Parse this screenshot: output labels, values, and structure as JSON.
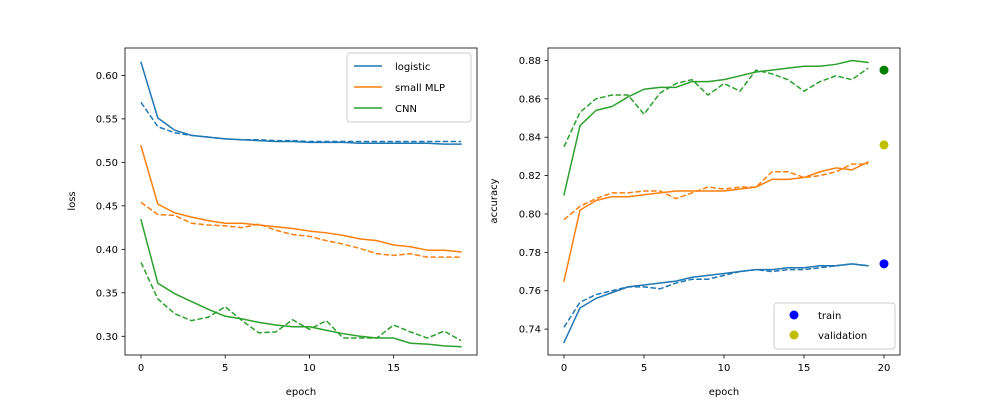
{
  "chart_data": [
    {
      "type": "line",
      "xlabel": "epoch",
      "ylabel": "loss",
      "xlim": [
        -0.95,
        19.95
      ],
      "ylim": [
        0.2785,
        0.6315
      ],
      "xticks": [
        0,
        5,
        10,
        15
      ],
      "yticks": [
        0.3,
        0.35,
        0.4,
        0.45,
        0.5,
        0.55,
        0.6
      ],
      "ytick_labels": [
        "0.30",
        "0.35",
        "0.40",
        "0.45",
        "0.50",
        "0.55",
        "0.60"
      ],
      "legend": {
        "placement": "top-right",
        "entries": [
          "logistic",
          "small MLP",
          "CNN"
        ]
      },
      "x": [
        0,
        1,
        2,
        3,
        4,
        5,
        6,
        7,
        8,
        9,
        10,
        11,
        12,
        13,
        14,
        15,
        16,
        17,
        18,
        19
      ],
      "series": [
        {
          "name": "logistic",
          "color": "#1f77b4",
          "linestyle": "solid",
          "values": [
            0.615,
            0.551,
            0.537,
            0.531,
            0.529,
            0.527,
            0.526,
            0.525,
            0.524,
            0.524,
            0.523,
            0.523,
            0.523,
            0.522,
            0.522,
            0.522,
            0.522,
            0.522,
            0.521,
            0.521
          ]
        },
        {
          "name": "logistic",
          "color": "#1f77b4",
          "linestyle": "dashed",
          "values": [
            0.569,
            0.541,
            0.534,
            0.531,
            0.529,
            0.527,
            0.526,
            0.526,
            0.525,
            0.525,
            0.524,
            0.524,
            0.524,
            0.524,
            0.524,
            0.524,
            0.524,
            0.524,
            0.524,
            0.524
          ]
        },
        {
          "name": "small MLP",
          "color": "#ff7f0e",
          "linestyle": "solid",
          "values": [
            0.519,
            0.452,
            0.442,
            0.437,
            0.433,
            0.43,
            0.43,
            0.428,
            0.426,
            0.424,
            0.421,
            0.419,
            0.416,
            0.412,
            0.41,
            0.405,
            0.403,
            0.399,
            0.399,
            0.397
          ]
        },
        {
          "name": "small MLP",
          "color": "#ff7f0e",
          "linestyle": "dashed",
          "values": [
            0.454,
            0.44,
            0.439,
            0.43,
            0.428,
            0.427,
            0.425,
            0.429,
            0.422,
            0.417,
            0.415,
            0.41,
            0.406,
            0.401,
            0.395,
            0.393,
            0.395,
            0.391,
            0.391,
            0.391
          ]
        },
        {
          "name": "CNN",
          "color": "#2ca02c",
          "linestyle": "solid",
          "values": [
            0.434,
            0.361,
            0.349,
            0.34,
            0.331,
            0.323,
            0.32,
            0.316,
            0.313,
            0.311,
            0.311,
            0.307,
            0.303,
            0.3,
            0.298,
            0.298,
            0.292,
            0.291,
            0.289,
            0.288
          ]
        },
        {
          "name": "CNN",
          "color": "#2ca02c",
          "linestyle": "dashed",
          "values": [
            0.385,
            0.343,
            0.326,
            0.318,
            0.322,
            0.334,
            0.318,
            0.304,
            0.305,
            0.319,
            0.308,
            0.318,
            0.298,
            0.298,
            0.298,
            0.313,
            0.305,
            0.298,
            0.306,
            0.295
          ]
        }
      ]
    },
    {
      "type": "line",
      "xlabel": "epoch",
      "ylabel": "accuracy",
      "xlim": [
        -1.0,
        21.0
      ],
      "ylim": [
        0.7265,
        0.8865
      ],
      "xticks": [
        0,
        5,
        10,
        15,
        20
      ],
      "yticks": [
        0.74,
        0.76,
        0.78,
        0.8,
        0.82,
        0.84,
        0.86,
        0.88
      ],
      "ytick_labels": [
        "0.74",
        "0.76",
        "0.78",
        "0.80",
        "0.82",
        "0.84",
        "0.86",
        "0.88"
      ],
      "legend": {
        "placement": "bottom-right",
        "entries": [
          "train",
          "validation"
        ]
      },
      "x": [
        0,
        1,
        2,
        3,
        4,
        5,
        6,
        7,
        8,
        9,
        10,
        11,
        12,
        13,
        14,
        15,
        16,
        17,
        18,
        19
      ],
      "series": [
        {
          "color": "#1f77b4",
          "linestyle": "solid",
          "values": [
            0.733,
            0.751,
            0.756,
            0.759,
            0.762,
            0.763,
            0.764,
            0.765,
            0.767,
            0.768,
            0.769,
            0.77,
            0.771,
            0.771,
            0.772,
            0.772,
            0.773,
            0.773,
            0.774,
            0.773
          ]
        },
        {
          "color": "#1f77b4",
          "linestyle": "dashed",
          "values": [
            0.741,
            0.754,
            0.758,
            0.76,
            0.762,
            0.762,
            0.761,
            0.764,
            0.766,
            0.766,
            0.768,
            0.77,
            0.771,
            0.77,
            0.771,
            0.771,
            0.772,
            0.773,
            0.774,
            0.773
          ]
        },
        {
          "color": "#ff7f0e",
          "linestyle": "solid",
          "values": [
            0.765,
            0.802,
            0.807,
            0.809,
            0.809,
            0.81,
            0.811,
            0.812,
            0.812,
            0.812,
            0.812,
            0.813,
            0.814,
            0.818,
            0.818,
            0.819,
            0.822,
            0.824,
            0.823,
            0.827
          ]
        },
        {
          "color": "#ff7f0e",
          "linestyle": "dashed",
          "values": [
            0.797,
            0.804,
            0.808,
            0.811,
            0.811,
            0.812,
            0.812,
            0.808,
            0.811,
            0.814,
            0.813,
            0.814,
            0.814,
            0.822,
            0.822,
            0.819,
            0.82,
            0.822,
            0.826,
            0.826
          ]
        },
        {
          "color": "#2ca02c",
          "linestyle": "solid",
          "values": [
            0.81,
            0.846,
            0.854,
            0.856,
            0.861,
            0.865,
            0.866,
            0.866,
            0.869,
            0.869,
            0.87,
            0.872,
            0.874,
            0.875,
            0.876,
            0.877,
            0.877,
            0.878,
            0.88,
            0.879
          ]
        },
        {
          "color": "#2ca02c",
          "linestyle": "dashed",
          "values": [
            0.835,
            0.853,
            0.86,
            0.862,
            0.862,
            0.852,
            0.863,
            0.868,
            0.87,
            0.862,
            0.868,
            0.864,
            0.875,
            0.873,
            0.87,
            0.864,
            0.869,
            0.872,
            0.87,
            0.876
          ]
        }
      ],
      "markers": [
        {
          "x": 20,
          "y": 0.875,
          "color": "#008000"
        },
        {
          "x": 20,
          "y": 0.836,
          "color": "#bfbf00"
        },
        {
          "x": 20,
          "y": 0.774,
          "color": "#0000ff"
        }
      ],
      "legend_markers": [
        {
          "label": "train",
          "color": "#0000ff"
        },
        {
          "label": "validation",
          "color": "#bfbf00"
        }
      ]
    }
  ]
}
